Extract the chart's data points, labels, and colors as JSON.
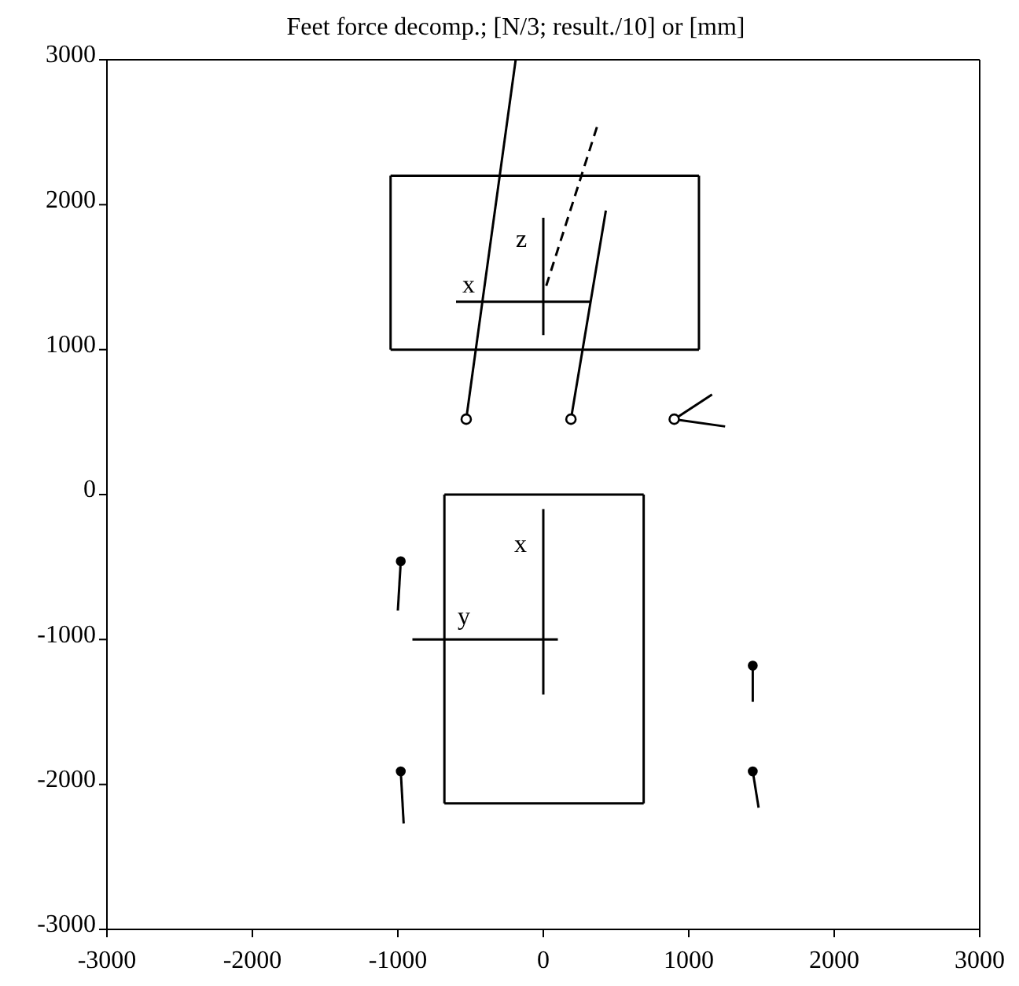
{
  "chart_data": {
    "type": "line",
    "title": "Feet force decomp.; [N/3; result./10] or [mm]",
    "xlim": [
      -3000,
      3000
    ],
    "xticks": [
      -3000,
      -2000,
      -1000,
      0,
      1000,
      2000,
      3000
    ],
    "ylim": [
      -3000,
      3000
    ],
    "yticks": [
      -3000,
      -2000,
      -1000,
      0,
      1000,
      2000,
      3000
    ],
    "grid": false,
    "marker": "none",
    "line_style": "solid",
    "series": [
      {
        "color": "#000000",
        "x": [
          -1050,
          1070
        ],
        "values": [
          1000,
          1000
        ]
      },
      {
        "color": "#000000",
        "x": [
          1070,
          1070
        ],
        "values": [
          1000,
          2200
        ]
      },
      {
        "color": "#000000",
        "x": [
          -1050,
          1070
        ],
        "values": [
          2200,
          2200
        ]
      },
      {
        "color": "#000000",
        "x": [
          -1050,
          -1050
        ],
        "values": [
          1000,
          2200
        ]
      },
      {
        "color": "#000000",
        "x": [
          -530,
          -190
        ],
        "values": [
          520,
          3000
        ]
      },
      {
        "color": "#000000",
        "x": [
          190,
          430
        ],
        "values": [
          520,
          1960
        ]
      },
      {
        "color": "#000000",
        "x": [
          20,
          370
        ],
        "values": [
          1440,
          2540
        ],
        "line_style": "dashed"
      },
      {
        "color": "#000000",
        "x": [
          0,
          0
        ],
        "values": [
          1100,
          1910
        ]
      },
      {
        "color": "#000000",
        "x": [
          -600,
          320
        ],
        "values": [
          1330,
          1330
        ]
      },
      {
        "color": "#000000",
        "x": [
          900,
          1160
        ],
        "values": [
          520,
          690
        ]
      },
      {
        "color": "#000000",
        "x": [
          900,
          1250
        ],
        "values": [
          520,
          470
        ]
      },
      {
        "color": "#000000",
        "x": [
          -680,
          690
        ],
        "values": [
          0,
          0
        ]
      },
      {
        "color": "#000000",
        "x": [
          690,
          690
        ],
        "values": [
          0,
          -2130
        ]
      },
      {
        "color": "#000000",
        "x": [
          -680,
          690
        ],
        "values": [
          -2130,
          -2130
        ]
      },
      {
        "color": "#000000",
        "x": [
          -680,
          -680
        ],
        "values": [
          0,
          -2130
        ]
      },
      {
        "color": "#000000",
        "x": [
          0,
          0
        ],
        "values": [
          -100,
          -1380
        ]
      },
      {
        "color": "#000000",
        "x": [
          -900,
          100
        ],
        "values": [
          -1000,
          -1000
        ]
      },
      {
        "color": "#000000",
        "x": [
          -980,
          -1000
        ],
        "values": [
          -460,
          -800
        ]
      },
      {
        "color": "#000000",
        "x": [
          -980,
          -960
        ],
        "values": [
          -1910,
          -2270
        ]
      },
      {
        "color": "#000000",
        "x": [
          1440,
          1440
        ],
        "values": [
          -1180,
          -1430
        ]
      },
      {
        "color": "#000000",
        "x": [
          1440,
          1480
        ],
        "values": [
          -1910,
          -2160
        ]
      },
      {
        "type": "scatter",
        "color": "#000000",
        "marker": "circle",
        "x": [
          -530,
          190,
          900
        ],
        "values": [
          520,
          520,
          520
        ]
      },
      {
        "type": "scatter",
        "color": "#000000",
        "marker": "circle",
        "x": [
          -980,
          -980,
          1440,
          1440
        ],
        "values": [
          -460,
          -1910,
          -1180,
          -1910
        ]
      }
    ],
    "annotations": [
      "x",
      "z",
      "x",
      "y"
    ]
  }
}
